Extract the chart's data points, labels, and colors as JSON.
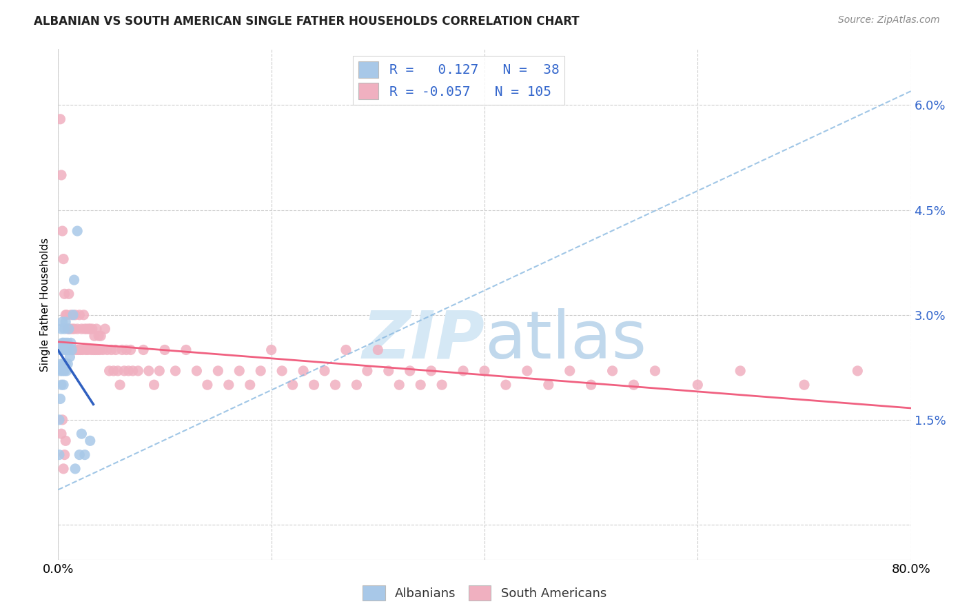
{
  "title": "ALBANIAN VS SOUTH AMERICAN SINGLE FATHER HOUSEHOLDS CORRELATION CHART",
  "source": "Source: ZipAtlas.com",
  "ylabel": "Single Father Households",
  "xlim": [
    0.0,
    0.8
  ],
  "ylim": [
    -0.005,
    0.068
  ],
  "ytick_vals": [
    0.0,
    0.015,
    0.03,
    0.045,
    0.06
  ],
  "ytick_labels": [
    "",
    "1.5%",
    "3.0%",
    "4.5%",
    "6.0%"
  ],
  "albanian_R": 0.127,
  "albanian_N": 38,
  "south_american_R": -0.057,
  "south_american_N": 105,
  "albanian_color": "#a8c8e8",
  "south_american_color": "#f0b0c0",
  "albanian_line_color": "#3060c0",
  "south_american_line_color": "#f06080",
  "albanian_dashed_color": "#88b8e0",
  "legend_text_color": "#3366cc",
  "watermark_color": "#d5e8f5",
  "alb_x": [
    0.001,
    0.001,
    0.002,
    0.002,
    0.002,
    0.003,
    0.003,
    0.003,
    0.003,
    0.004,
    0.004,
    0.004,
    0.005,
    0.005,
    0.005,
    0.006,
    0.006,
    0.006,
    0.007,
    0.007,
    0.007,
    0.008,
    0.008,
    0.009,
    0.009,
    0.01,
    0.01,
    0.011,
    0.012,
    0.013,
    0.014,
    0.015,
    0.016,
    0.018,
    0.02,
    0.022,
    0.025,
    0.03
  ],
  "alb_y": [
    0.01,
    0.015,
    0.018,
    0.022,
    0.025,
    0.02,
    0.023,
    0.025,
    0.028,
    0.022,
    0.026,
    0.029,
    0.02,
    0.023,
    0.026,
    0.022,
    0.025,
    0.028,
    0.023,
    0.026,
    0.029,
    0.022,
    0.025,
    0.023,
    0.026,
    0.025,
    0.028,
    0.024,
    0.026,
    0.025,
    0.03,
    0.035,
    0.008,
    0.042,
    0.01,
    0.013,
    0.01,
    0.012
  ],
  "sa_x": [
    0.002,
    0.003,
    0.004,
    0.005,
    0.006,
    0.007,
    0.008,
    0.009,
    0.01,
    0.011,
    0.012,
    0.013,
    0.014,
    0.015,
    0.016,
    0.017,
    0.018,
    0.019,
    0.02,
    0.021,
    0.022,
    0.023,
    0.024,
    0.025,
    0.026,
    0.027,
    0.028,
    0.029,
    0.03,
    0.031,
    0.032,
    0.033,
    0.034,
    0.035,
    0.036,
    0.037,
    0.038,
    0.039,
    0.04,
    0.042,
    0.044,
    0.046,
    0.048,
    0.05,
    0.052,
    0.054,
    0.056,
    0.058,
    0.06,
    0.062,
    0.064,
    0.066,
    0.068,
    0.07,
    0.075,
    0.08,
    0.085,
    0.09,
    0.095,
    0.1,
    0.11,
    0.12,
    0.13,
    0.14,
    0.15,
    0.16,
    0.17,
    0.18,
    0.19,
    0.2,
    0.21,
    0.22,
    0.23,
    0.24,
    0.25,
    0.26,
    0.27,
    0.28,
    0.29,
    0.3,
    0.31,
    0.32,
    0.33,
    0.34,
    0.35,
    0.36,
    0.38,
    0.4,
    0.42,
    0.44,
    0.46,
    0.48,
    0.5,
    0.52,
    0.54,
    0.56,
    0.6,
    0.64,
    0.7,
    0.75,
    0.003,
    0.004,
    0.005,
    0.006,
    0.007
  ],
  "sa_y": [
    0.058,
    0.05,
    0.042,
    0.038,
    0.033,
    0.03,
    0.03,
    0.028,
    0.033,
    0.028,
    0.03,
    0.028,
    0.025,
    0.028,
    0.03,
    0.025,
    0.028,
    0.025,
    0.03,
    0.025,
    0.028,
    0.025,
    0.03,
    0.028,
    0.025,
    0.028,
    0.025,
    0.028,
    0.028,
    0.025,
    0.028,
    0.025,
    0.027,
    0.025,
    0.028,
    0.025,
    0.027,
    0.025,
    0.027,
    0.025,
    0.028,
    0.025,
    0.022,
    0.025,
    0.022,
    0.025,
    0.022,
    0.02,
    0.025,
    0.022,
    0.025,
    0.022,
    0.025,
    0.022,
    0.022,
    0.025,
    0.022,
    0.02,
    0.022,
    0.025,
    0.022,
    0.025,
    0.022,
    0.02,
    0.022,
    0.02,
    0.022,
    0.02,
    0.022,
    0.025,
    0.022,
    0.02,
    0.022,
    0.02,
    0.022,
    0.02,
    0.025,
    0.02,
    0.022,
    0.025,
    0.022,
    0.02,
    0.022,
    0.02,
    0.022,
    0.02,
    0.022,
    0.022,
    0.02,
    0.022,
    0.02,
    0.022,
    0.02,
    0.022,
    0.02,
    0.022,
    0.02,
    0.022,
    0.02,
    0.022,
    0.013,
    0.015,
    0.008,
    0.01,
    0.012
  ]
}
